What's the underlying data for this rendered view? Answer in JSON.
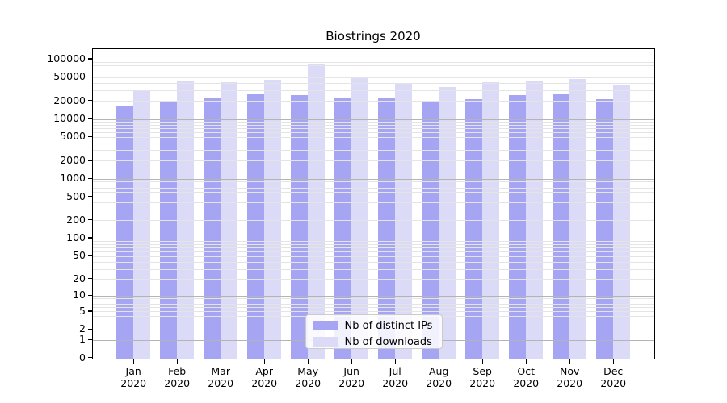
{
  "chart_data": {
    "type": "bar",
    "title": "Biostrings 2020",
    "categories": [
      "Jan 2020",
      "Feb 2020",
      "Mar 2020",
      "Apr 2020",
      "May 2020",
      "Jun 2020",
      "Jul 2020",
      "Aug 2020",
      "Sep 2020",
      "Oct 2020",
      "Nov 2020",
      "Dec 2020"
    ],
    "series": [
      {
        "name": "Nb of distinct IPs",
        "color": "#a5a5f3",
        "values": [
          17300,
          20000,
          22900,
          26400,
          26100,
          23400,
          22700,
          20600,
          22400,
          25600,
          26700,
          22000
        ]
      },
      {
        "name": "Nb of downloads",
        "color": "#dbdbf8",
        "values": [
          31200,
          44900,
          42600,
          46300,
          87600,
          53400,
          40400,
          35700,
          42600,
          44900,
          48700,
          38500
        ]
      }
    ],
    "xlabel": "",
    "ylabel": "",
    "yscale": "log1p",
    "yticks": [
      0,
      1,
      2,
      5,
      10,
      20,
      50,
      100,
      200,
      500,
      1000,
      2000,
      5000,
      10000,
      20000,
      50000,
      100000
    ],
    "ylim": [
      0,
      150000
    ],
    "grid": true,
    "legend_position": "inside-bottom-center",
    "colors": {
      "major_grid": "#b4b4b4",
      "minor_grid": "#e4e4e4",
      "axis": "#000000",
      "background": "#ffffff"
    }
  }
}
